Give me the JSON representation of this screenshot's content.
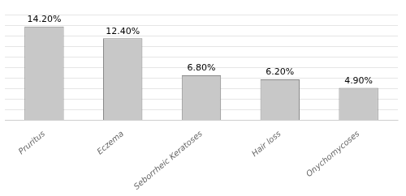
{
  "chart_data": {
    "type": "bar",
    "categories": [
      "Pruritus",
      "Eczema",
      "Seborrheic Keratoses",
      "Hair loss",
      "Onychomycoses"
    ],
    "values": [
      14.2,
      12.4,
      6.8,
      6.2,
      4.9
    ],
    "value_labels": [
      "14.20%",
      "12.40%",
      "6.80%",
      "6.20%",
      "4.90%"
    ],
    "data_labels": true,
    "color": "#c8c8c8",
    "ylim": [
      0,
      16
    ],
    "yticks": [
      0,
      1.6,
      3.2,
      4.8,
      6.4,
      8,
      9.6,
      11.2,
      12.8,
      14.4,
      16
    ],
    "grid": true,
    "tick_labels": "x"
  }
}
